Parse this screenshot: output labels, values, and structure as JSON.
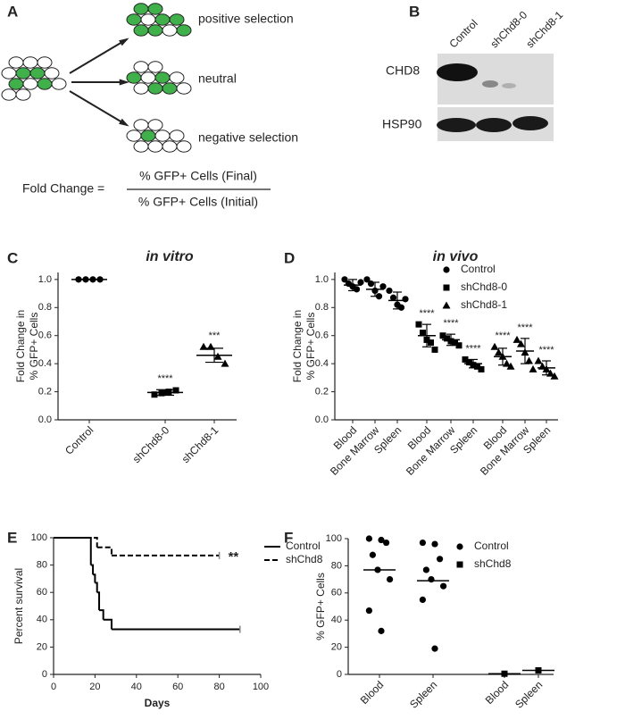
{
  "panel_labels": [
    "A",
    "B",
    "C",
    "D",
    "E",
    "F"
  ],
  "diagram": {
    "outcomes": [
      "positive selection",
      "neutral",
      "negative selection"
    ],
    "formula": {
      "lhs": "Fold Change =",
      "numerator": "% GFP+ Cells (Final)",
      "denominator": "% GFP+ Cells (Initial)"
    }
  },
  "blot": {
    "lanes": [
      "Control",
      "shChd8-0",
      "shChd8-1"
    ],
    "rows": [
      "CHD8",
      "HSP90"
    ]
  },
  "chart_data": [
    {
      "type": "dot",
      "title": "in vitro",
      "ylabel": [
        "Fold Change in",
        "% GFP+ Cells"
      ],
      "categories": [
        "Control",
        "shChd8-0",
        "shChd8-1"
      ],
      "markers": [
        "circle",
        "square",
        "triangle"
      ],
      "points": [
        [
          1,
          1,
          1,
          1
        ],
        [
          0.18,
          0.19,
          0.2,
          0.21
        ],
        [
          0.52,
          0.52,
          0.45,
          0.4
        ]
      ],
      "means": [
        1,
        0.195,
        0.46
      ],
      "sds": [
        0,
        0.02,
        0.05
      ],
      "annotations": [
        null,
        "****",
        "***"
      ],
      "ylim": [
        0,
        1.05
      ],
      "yticks": [
        {
          "value": 0,
          "label": "0.0"
        },
        0.2,
        0.4,
        0.6,
        0.8,
        {
          "value": 1,
          "label": "1.0"
        }
      ],
      "color": "#000000"
    },
    {
      "type": "dot",
      "title": "in vivo",
      "ylabel": [
        "Fold Change in",
        "% GFP+ Cells"
      ],
      "categories": [
        "Blood",
        "Bone Marrow",
        "Spleen",
        "Blood",
        "Bone Marrow",
        "Spleen",
        "Blood",
        "Bone Marrow",
        "Spleen"
      ],
      "markers": [
        "circle",
        "circle",
        "circle",
        "square",
        "square",
        "square",
        "triangle",
        "triangle",
        "triangle"
      ],
      "points": [
        [
          1.0,
          0.97,
          0.95,
          0.93,
          0.98
        ],
        [
          1.0,
          0.97,
          0.92,
          0.88,
          0.95
        ],
        [
          0.92,
          0.87,
          0.82,
          0.8,
          0.86
        ],
        [
          0.68,
          0.62,
          0.57,
          0.55,
          0.5
        ],
        [
          0.6,
          0.58,
          0.56,
          0.55,
          0.53
        ],
        [
          0.43,
          0.41,
          0.39,
          0.38,
          0.36
        ],
        [
          0.52,
          0.48,
          0.45,
          0.4,
          0.38
        ],
        [
          0.57,
          0.54,
          0.48,
          0.42,
          0.36
        ],
        [
          0.42,
          0.38,
          0.36,
          0.33,
          0.31
        ]
      ],
      "means": [
        0.96,
        0.93,
        0.85,
        0.6,
        0.57,
        0.4,
        0.45,
        0.49,
        0.37
      ],
      "sds": [
        0.04,
        0.05,
        0.06,
        0.08,
        0.04,
        0.03,
        0.06,
        0.09,
        0.05
      ],
      "annotations": [
        null,
        null,
        null,
        "****",
        "****",
        "****",
        "****",
        "****",
        "****"
      ],
      "legend": [
        {
          "name": "Control",
          "marker": "circle"
        },
        {
          "name": "shChd8-0",
          "marker": "square"
        },
        {
          "name": "shChd8-1",
          "marker": "triangle"
        }
      ],
      "ylim": [
        0,
        1.05
      ],
      "yticks": [
        {
          "value": 0,
          "label": "0.0"
        },
        0.2,
        0.4,
        0.6,
        0.8,
        {
          "value": 1,
          "label": "1.0"
        }
      ],
      "color": "#000000"
    },
    {
      "type": "survival",
      "ylabel": "Percent survival",
      "xlabel": "Days",
      "xlim": [
        0,
        100
      ],
      "ylim": [
        0,
        100
      ],
      "xticks": [
        0,
        20,
        40,
        60,
        80,
        100
      ],
      "yticks": [
        0,
        20,
        40,
        60,
        80,
        100
      ],
      "series": [
        {
          "name": "Control",
          "color": "#000000",
          "dashed": false,
          "x": [
            0,
            18,
            19,
            20,
            21,
            22,
            24,
            28,
            90
          ],
          "values": [
            100,
            80,
            73,
            67,
            60,
            47,
            40,
            33,
            33
          ]
        },
        {
          "name": "shChd8",
          "color": "#000000",
          "dashed": true,
          "x": [
            0,
            21,
            28,
            80
          ],
          "values": [
            100,
            93,
            87,
            87
          ]
        }
      ],
      "annotations": [
        "**"
      ]
    },
    {
      "type": "dot",
      "ylabel": "% GFP+ Cells",
      "categories": [
        "Blood",
        "Spleen",
        "Blood",
        "Spleen"
      ],
      "markers": [
        "circle",
        "circle",
        "square",
        "square"
      ],
      "points": [
        [
          100,
          99,
          97,
          88,
          77,
          70,
          47,
          32
        ],
        [
          97,
          96,
          85,
          77,
          70,
          65,
          55,
          19
        ],
        [
          0.5
        ],
        [
          3
        ]
      ],
      "medians": [
        77,
        69,
        0.5,
        3
      ],
      "legend": [
        {
          "name": "Control",
          "marker": "circle"
        },
        {
          "name": "shChd8",
          "marker": "square"
        }
      ],
      "ylim": [
        0,
        100
      ],
      "yticks": [
        0,
        20,
        40,
        60,
        80,
        100
      ],
      "color": "#000000"
    }
  ]
}
